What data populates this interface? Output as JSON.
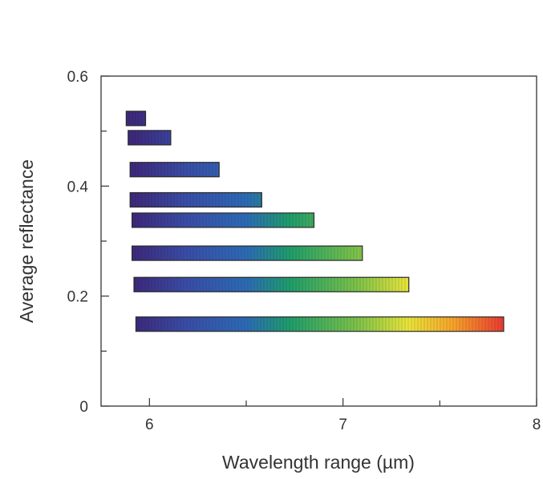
{
  "chart_data": {
    "type": "bar",
    "orientation": "horizontal-range",
    "xlabel": "Wavelength range (µm)",
    "ylabel": "Average reflectance",
    "xlim": [
      5.75,
      8
    ],
    "ylim": [
      0,
      0.6
    ],
    "x_ticks": [
      6,
      7,
      8
    ],
    "x_tick_labels": [
      "6",
      "7",
      "8"
    ],
    "x_minor_ticks": [
      6.5,
      7.5
    ],
    "y_ticks": [
      0,
      0.2,
      0.4,
      0.6
    ],
    "y_tick_labels": [
      "0",
      "0.2",
      "0.4",
      "0.6"
    ],
    "y_minor_ticks": [
      0.1,
      0.3,
      0.5
    ],
    "grid": false,
    "color_encoding": "bar fill follows a wavelength-mapped spectrum (violet to red)",
    "colors": {
      "spectrum": [
        "#3d2a7e",
        "#3a4ea8",
        "#2c6bb6",
        "#1f9e6a",
        "#7cc24a",
        "#e8e43a",
        "#f6a52a",
        "#ec3a32"
      ],
      "bar_outline": "#2a2a2a",
      "axis": "#333333"
    },
    "bars": [
      {
        "x_start": 5.88,
        "x_end": 5.98,
        "y": 0.523
      },
      {
        "x_start": 5.89,
        "x_end": 6.11,
        "y": 0.488
      },
      {
        "x_start": 5.9,
        "x_end": 6.36,
        "y": 0.43
      },
      {
        "x_start": 5.9,
        "x_end": 6.58,
        "y": 0.375
      },
      {
        "x_start": 5.91,
        "x_end": 6.85,
        "y": 0.338
      },
      {
        "x_start": 5.91,
        "x_end": 7.1,
        "y": 0.278
      },
      {
        "x_start": 5.92,
        "x_end": 7.34,
        "y": 0.221
      },
      {
        "x_start": 5.93,
        "x_end": 7.83,
        "y": 0.149
      }
    ]
  }
}
